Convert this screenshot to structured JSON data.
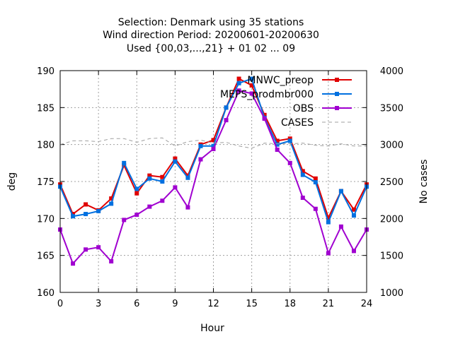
{
  "chart_data": {
    "type": "line",
    "title_lines": [
      "Selection: Denmark using    35 stations",
      "Wind direction    Period: 20200601-20200630",
      "Used {00,03,...,21} + 01 02 ... 09"
    ],
    "xlabel": "Hour",
    "ylabel": "deg",
    "y2label": "No cases",
    "xlim": [
      0,
      24
    ],
    "ylim": [
      160,
      190
    ],
    "y2lim": [
      1000,
      4000
    ],
    "xticks": [
      "0",
      "3",
      "6",
      "9",
      "12",
      "15",
      "18",
      "21",
      "24"
    ],
    "yticks": [
      "160",
      "165",
      "170",
      "175",
      "180",
      "185",
      "190"
    ],
    "y2ticks": [
      "1000",
      "1500",
      "2000",
      "2500",
      "3000",
      "3500",
      "4000"
    ],
    "grid": true,
    "legend_position": "top-right",
    "x": [
      0,
      1,
      2,
      3,
      4,
      5,
      6,
      7,
      8,
      9,
      10,
      11,
      12,
      13,
      14,
      15,
      16,
      17,
      18,
      19,
      20,
      21,
      22,
      23,
      24
    ],
    "series": [
      {
        "name": "MNWC_preop",
        "color": "#e00000",
        "marker": "square",
        "values": [
          174.6,
          170.6,
          171.9,
          171.1,
          172.7,
          177.2,
          173.4,
          175.8,
          175.6,
          178.1,
          175.8,
          180.0,
          180.6,
          185.0,
          188.9,
          188.0,
          184.0,
          180.5,
          180.8,
          176.4,
          175.4,
          170.1,
          173.7,
          171.2,
          174.6
        ]
      },
      {
        "name": "MEPS_prodmbr000",
        "color": "#0070e0",
        "marker": "square",
        "values": [
          174.3,
          170.3,
          170.6,
          171.0,
          172.0,
          177.5,
          174.0,
          175.4,
          175.0,
          177.7,
          175.5,
          179.8,
          179.8,
          185.0,
          188.3,
          188.9,
          183.6,
          180.0,
          180.5,
          175.9,
          174.9,
          169.5,
          173.7,
          170.4,
          174.3
        ]
      },
      {
        "name": "OBS",
        "color": "#a000d0",
        "marker": "square",
        "values": [
          168.5,
          163.9,
          165.8,
          166.1,
          164.2,
          169.8,
          170.5,
          171.6,
          172.4,
          174.2,
          171.5,
          178.0,
          179.4,
          183.3,
          187.3,
          186.9,
          183.5,
          179.3,
          177.5,
          172.8,
          171.3,
          165.3,
          168.9,
          165.6,
          168.5
        ]
      },
      {
        "name": "CASES",
        "color": "#a0a0a0",
        "dashed": true,
        "axis": "y2",
        "values": [
          3000,
          3050,
          3050,
          3040,
          3080,
          3080,
          3030,
          3080,
          3090,
          2980,
          3040,
          3060,
          3020,
          3030,
          2980,
          2950,
          3020,
          3010,
          3010,
          3020,
          2990,
          2980,
          3010,
          2980,
          2980
        ]
      }
    ]
  }
}
